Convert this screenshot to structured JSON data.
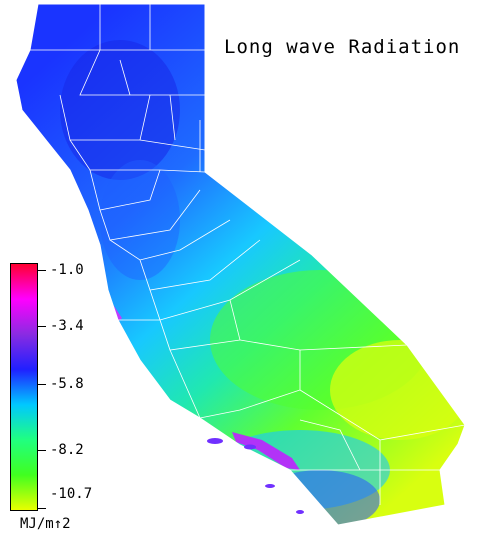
{
  "title": "Long wave Radiation",
  "legend": {
    "tick_labels": [
      "-1.0",
      "-3.4",
      "-5.8",
      "-8.2",
      "-10.7"
    ],
    "unit": "MJ/m↑2",
    "colors": [
      "#ff0030",
      "#ff00ff",
      "#8a2be2",
      "#2020ff",
      "#00c8ff",
      "#20ff80",
      "#40ff20",
      "#e8ff00"
    ]
  },
  "map": {
    "fill_colors": {
      "north_blue": "#1f3fff",
      "coast_cyan": "#18c8ff",
      "central_teal": "#20e8c8",
      "desert_green": "#5cff30",
      "southeast_yellow": "#d8ff10",
      "south_coast_magenta": "#d030ff",
      "boundary": "#ffffff"
    }
  }
}
